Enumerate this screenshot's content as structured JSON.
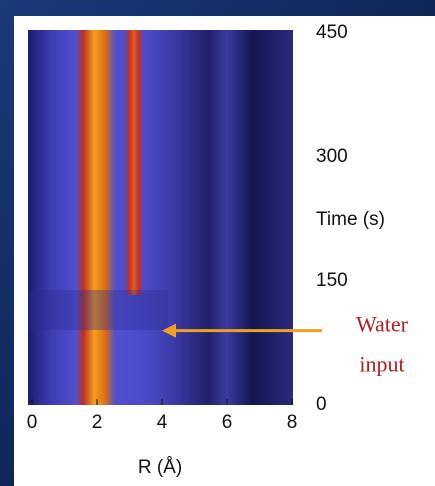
{
  "chart_data": {
    "type": "heatmap",
    "x_label": "R (Å)",
    "y_label": "Time (s)",
    "xlim": [
      0,
      8
    ],
    "xticks": [
      0,
      2,
      4,
      6,
      8
    ],
    "ylim": [
      0,
      450
    ],
    "yticks": [
      0,
      150,
      300,
      450
    ],
    "annotation": {
      "lines": [
        "Water",
        "input"
      ],
      "x": 4,
      "y": 90,
      "color": "#f0a020"
    }
  }
}
